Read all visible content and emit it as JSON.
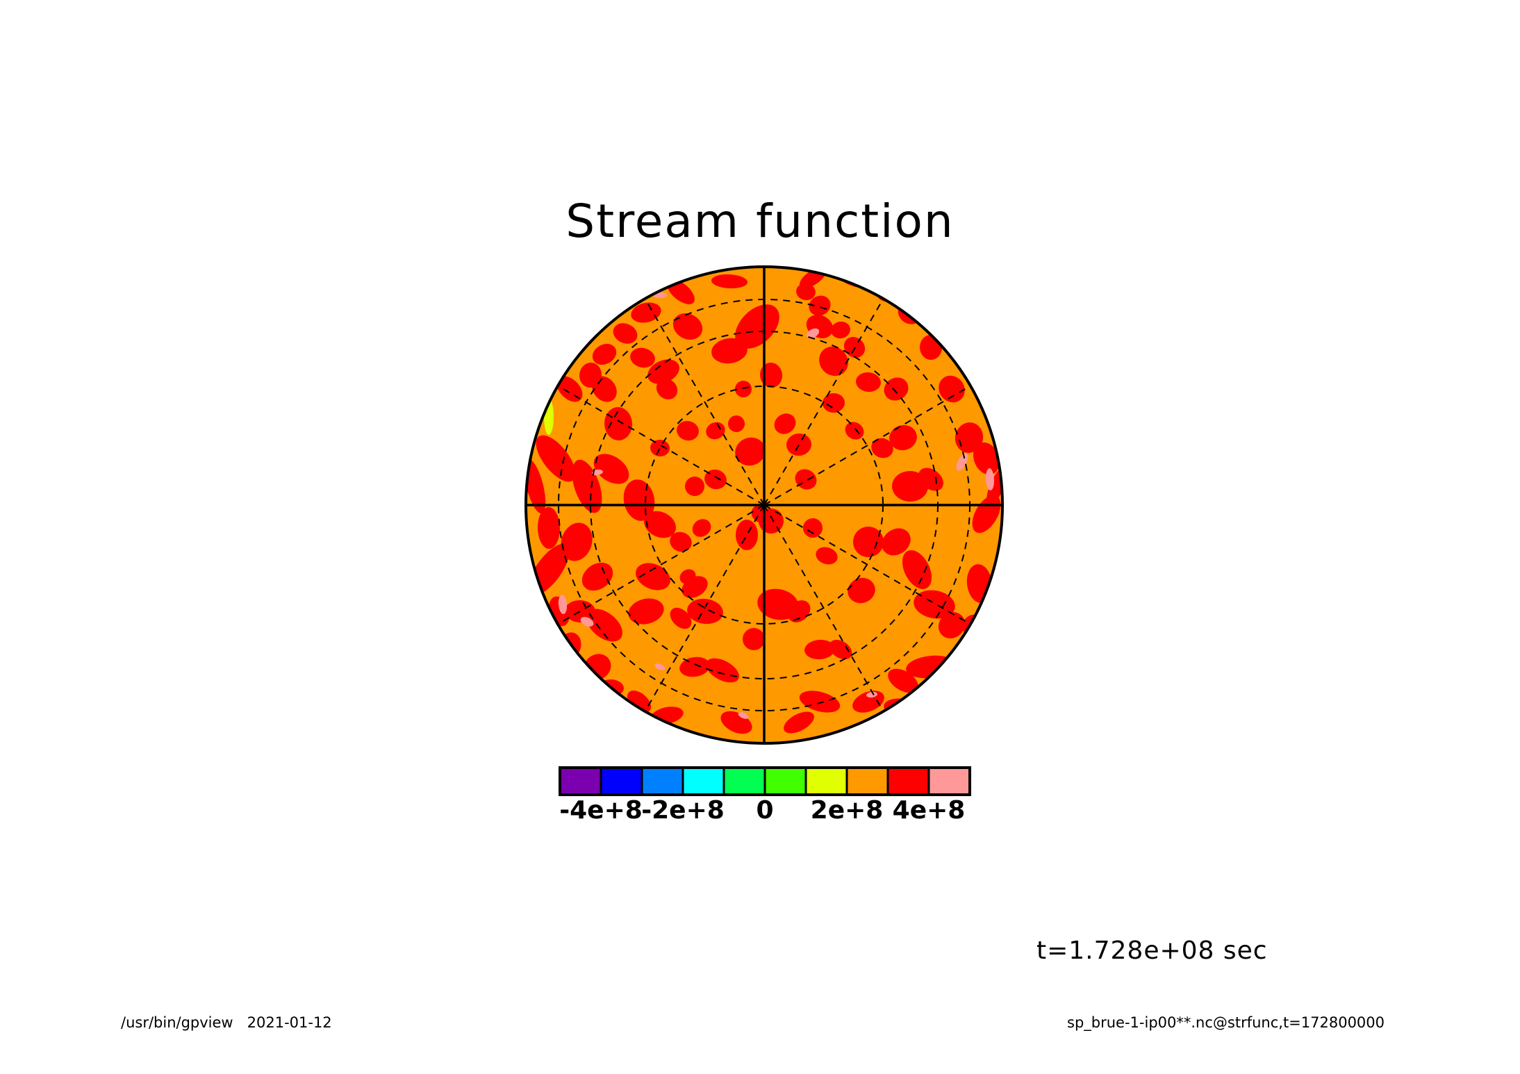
{
  "chart_data": {
    "type": "heatmap",
    "title": "Stream function",
    "projection": "polar orthographic",
    "colorbar": {
      "colors": [
        "#7b00b0",
        "#0000ff",
        "#0080ff",
        "#00ffff",
        "#00ff50",
        "#40ff00",
        "#e0ff00",
        "#ff9900",
        "#ff0000",
        "#ff9999"
      ],
      "labels": [
        "-4e+8",
        "-2e+8",
        "0",
        "2e+8",
        "4e+8"
      ],
      "label_boundaries": [
        1,
        3,
        5,
        7,
        9
      ]
    },
    "dominant_levels": [
      "2e+8 to 3e+8 (orange)",
      "3e+8 to 4e+8 (red)"
    ],
    "grid": true
  },
  "annotations": {
    "time": "t=1.728e+08 sec",
    "footer_left": "/usr/bin/gpview   2021-01-12",
    "footer_right": "sp_brue-1-ip00**.nc@strfunc,t=172800000"
  }
}
